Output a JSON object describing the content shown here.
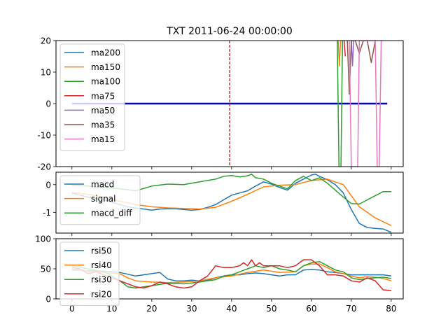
{
  "figure_title": "TXT 2011-06-24 00:00:00",
  "colors": {
    "tab_blue": "#1f77b4",
    "tab_orange": "#ff7f0e",
    "tab_green": "#2ca02c",
    "tab_red": "#d62728",
    "tab_purple": "#9467bd",
    "tab_brown": "#8c564b",
    "tab_pink": "#e377c2",
    "zero_line": "#0000cc",
    "marker_line": "#cc0000"
  },
  "chart_data": [
    {
      "type": "line",
      "panel": "ma",
      "title": "TXT 2011-06-24 00:00:00",
      "xlim": [
        -4,
        83
      ],
      "ylim": [
        -20,
        20
      ],
      "yticks": [
        -20,
        -10,
        0,
        10,
        20
      ],
      "grid": false,
      "legend_placement": "upper-left",
      "vertical_marker_x": 39.5,
      "baseline": {
        "x": [
          0,
          79
        ],
        "y": [
          0,
          0
        ]
      },
      "series": [
        {
          "name": "ma200",
          "color": "tab_blue",
          "x": [],
          "y": []
        },
        {
          "name": "ma150",
          "color": "tab_orange",
          "x": [
            66.7,
            67.0,
            67.3
          ],
          "y": [
            20,
            12,
            20
          ]
        },
        {
          "name": "ma100",
          "color": "tab_green",
          "x": [
            66.5,
            66.9,
            67.4,
            67.8,
            68.0
          ],
          "y": [
            20,
            -20,
            -20,
            20,
            20
          ]
        },
        {
          "name": "ma75",
          "color": "tab_red",
          "x": [
            68.2,
            68.5
          ],
          "y": [
            20,
            15
          ]
        },
        {
          "name": "ma50",
          "color": "tab_purple",
          "x": [
            70.0,
            70.3,
            70.6
          ],
          "y": [
            20,
            12,
            20
          ]
        },
        {
          "name": "ma35",
          "color": "tab_brown",
          "x": [
            69.0,
            69.5,
            70.0,
            71.0,
            72.0,
            73.0,
            74.0,
            75.0,
            76.0
          ],
          "y": [
            20,
            3,
            20,
            20,
            16,
            20,
            20,
            13,
            20
          ]
        },
        {
          "name": "ma15",
          "color": "tab_pink",
          "x": [
            69.5,
            70.0,
            71.0,
            71.6,
            72.0,
            72.6,
            73.0,
            76.0,
            76.5,
            77.0,
            77.5,
            78.0
          ],
          "y": [
            20,
            -20,
            -20,
            -20,
            20,
            20,
            20,
            20,
            -20,
            -20,
            20,
            20
          ]
        }
      ]
    },
    {
      "type": "line",
      "panel": "macd",
      "xlim": [
        -4,
        83
      ],
      "ylim": [
        -1.75,
        0.45
      ],
      "yticks": [
        0,
        -1
      ],
      "grid": false,
      "legend_placement": "upper-left",
      "series": [
        {
          "name": "macd",
          "color": "tab_blue",
          "x": [
            0,
            2,
            4,
            6,
            8,
            10,
            12,
            14,
            16,
            18,
            20,
            22,
            24,
            26,
            28,
            30,
            32,
            34,
            36,
            38,
            40,
            42,
            44,
            46,
            48,
            50,
            52,
            54,
            56,
            58,
            60,
            61,
            62,
            64,
            66,
            68,
            70,
            72,
            74,
            76,
            78,
            80
          ],
          "y": [
            -0.3,
            -0.38,
            -0.45,
            -0.5,
            -0.55,
            -0.63,
            -0.72,
            -0.8,
            -0.85,
            -0.88,
            -0.92,
            -0.88,
            -0.87,
            -0.87,
            -0.9,
            -0.92,
            -0.9,
            -0.82,
            -0.72,
            -0.55,
            -0.38,
            -0.3,
            -0.22,
            -0.05,
            0.1,
            0.02,
            -0.1,
            -0.2,
            0.05,
            0.2,
            0.35,
            0.38,
            0.3,
            0.18,
            0.0,
            -0.3,
            -0.9,
            -1.4,
            -1.55,
            -1.58,
            -1.6,
            -1.72
          ]
        },
        {
          "name": "signal",
          "color": "tab_orange",
          "x": [
            0,
            4,
            8,
            12,
            16,
            20,
            24,
            28,
            32,
            36,
            40,
            44,
            48,
            52,
            56,
            60,
            64,
            68,
            70,
            72,
            76,
            80
          ],
          "y": [
            -0.28,
            -0.35,
            -0.45,
            -0.6,
            -0.72,
            -0.8,
            -0.84,
            -0.86,
            -0.88,
            -0.82,
            -0.6,
            -0.35,
            -0.08,
            -0.02,
            0.0,
            0.15,
            0.2,
            0.0,
            -0.4,
            -0.8,
            -1.2,
            -1.48
          ]
        },
        {
          "name": "macd_diff",
          "color": "tab_green",
          "x": [
            0,
            4,
            8,
            12,
            16,
            20,
            24,
            28,
            32,
            36,
            38,
            40,
            42,
            44,
            45,
            46,
            48,
            50,
            52,
            54,
            56,
            58,
            60,
            62,
            64,
            66,
            68,
            70,
            72,
            74,
            76,
            78,
            80
          ],
          "y": [
            -0.02,
            -0.05,
            -0.1,
            -0.15,
            -0.22,
            -0.05,
            0.02,
            0.0,
            0.1,
            0.2,
            0.3,
            0.33,
            0.28,
            0.32,
            0.38,
            0.25,
            0.2,
            0.05,
            -0.05,
            -0.15,
            0.15,
            0.3,
            0.15,
            0.25,
            0.05,
            -0.2,
            -0.45,
            -0.68,
            -0.7,
            -0.55,
            -0.4,
            -0.25,
            -0.25
          ]
        }
      ]
    },
    {
      "type": "line",
      "panel": "rsi",
      "xlim": [
        -4,
        83
      ],
      "ylim": [
        0,
        100
      ],
      "yticks": [
        0,
        50,
        100
      ],
      "xticks": [
        0,
        10,
        20,
        30,
        40,
        50,
        60,
        70,
        80
      ],
      "grid": false,
      "legend_placement": "upper-left",
      "series": [
        {
          "name": "rsi50",
          "color": "tab_blue",
          "x": [
            0,
            4,
            8,
            12,
            16,
            20,
            22,
            24,
            26,
            28,
            30,
            32,
            34,
            36,
            38,
            40,
            42,
            44,
            46,
            48,
            50,
            52,
            54,
            56,
            58,
            60,
            62,
            64,
            66,
            68,
            70,
            72,
            74,
            76,
            78,
            80
          ],
          "y": [
            48,
            47,
            46,
            44,
            38,
            42,
            44,
            33,
            30,
            30,
            31,
            30,
            31,
            35,
            38,
            40,
            40,
            42,
            43,
            42,
            40,
            38,
            40,
            40,
            48,
            49,
            48,
            45,
            44,
            42,
            40,
            40,
            40,
            40,
            40,
            38
          ]
        },
        {
          "name": "rsi40",
          "color": "tab_orange",
          "x": [
            0,
            4,
            8,
            12,
            14,
            16,
            20,
            24,
            28,
            32,
            36,
            40,
            44,
            48,
            52,
            56,
            58,
            60,
            62,
            64,
            66,
            68,
            70,
            72,
            74,
            76,
            78,
            80
          ],
          "y": [
            50,
            46,
            44,
            42,
            35,
            30,
            28,
            27,
            28,
            30,
            35,
            38,
            44,
            48,
            44,
            45,
            55,
            58,
            58,
            52,
            45,
            42,
            38,
            35,
            37,
            36,
            34,
            30
          ]
        },
        {
          "name": "rsi30",
          "color": "tab_green",
          "x": [
            0,
            4,
            8,
            10,
            12,
            14,
            16,
            18,
            20,
            24,
            28,
            32,
            36,
            38,
            40,
            42,
            44,
            46,
            48,
            50,
            52,
            54,
            56,
            58,
            60,
            62,
            64,
            66,
            68,
            70,
            72,
            74,
            76,
            78,
            80
          ],
          "y": [
            55,
            50,
            45,
            38,
            30,
            20,
            18,
            20,
            22,
            26,
            25,
            28,
            32,
            38,
            40,
            45,
            50,
            55,
            52,
            55,
            50,
            48,
            45,
            55,
            60,
            62,
            55,
            48,
            45,
            35,
            32,
            34,
            35,
            36,
            34
          ]
        },
        {
          "name": "rsi20",
          "color": "tab_red",
          "x": [
            0,
            2,
            4,
            6,
            8,
            10,
            12,
            14,
            16,
            18,
            20,
            22,
            24,
            26,
            28,
            30,
            32,
            34,
            36,
            38,
            40,
            42,
            43,
            44,
            45,
            46,
            47,
            48,
            50,
            52,
            54,
            56,
            58,
            60,
            62,
            64,
            66,
            68,
            70,
            72,
            74,
            76,
            78,
            80
          ],
          "y": [
            52,
            50,
            42,
            45,
            40,
            35,
            30,
            25,
            20,
            18,
            22,
            28,
            25,
            20,
            18,
            20,
            30,
            38,
            55,
            52,
            52,
            55,
            60,
            55,
            65,
            55,
            60,
            55,
            55,
            55,
            52,
            55,
            65,
            65,
            55,
            40,
            40,
            38,
            30,
            28,
            35,
            30,
            15,
            14
          ]
        }
      ]
    }
  ]
}
